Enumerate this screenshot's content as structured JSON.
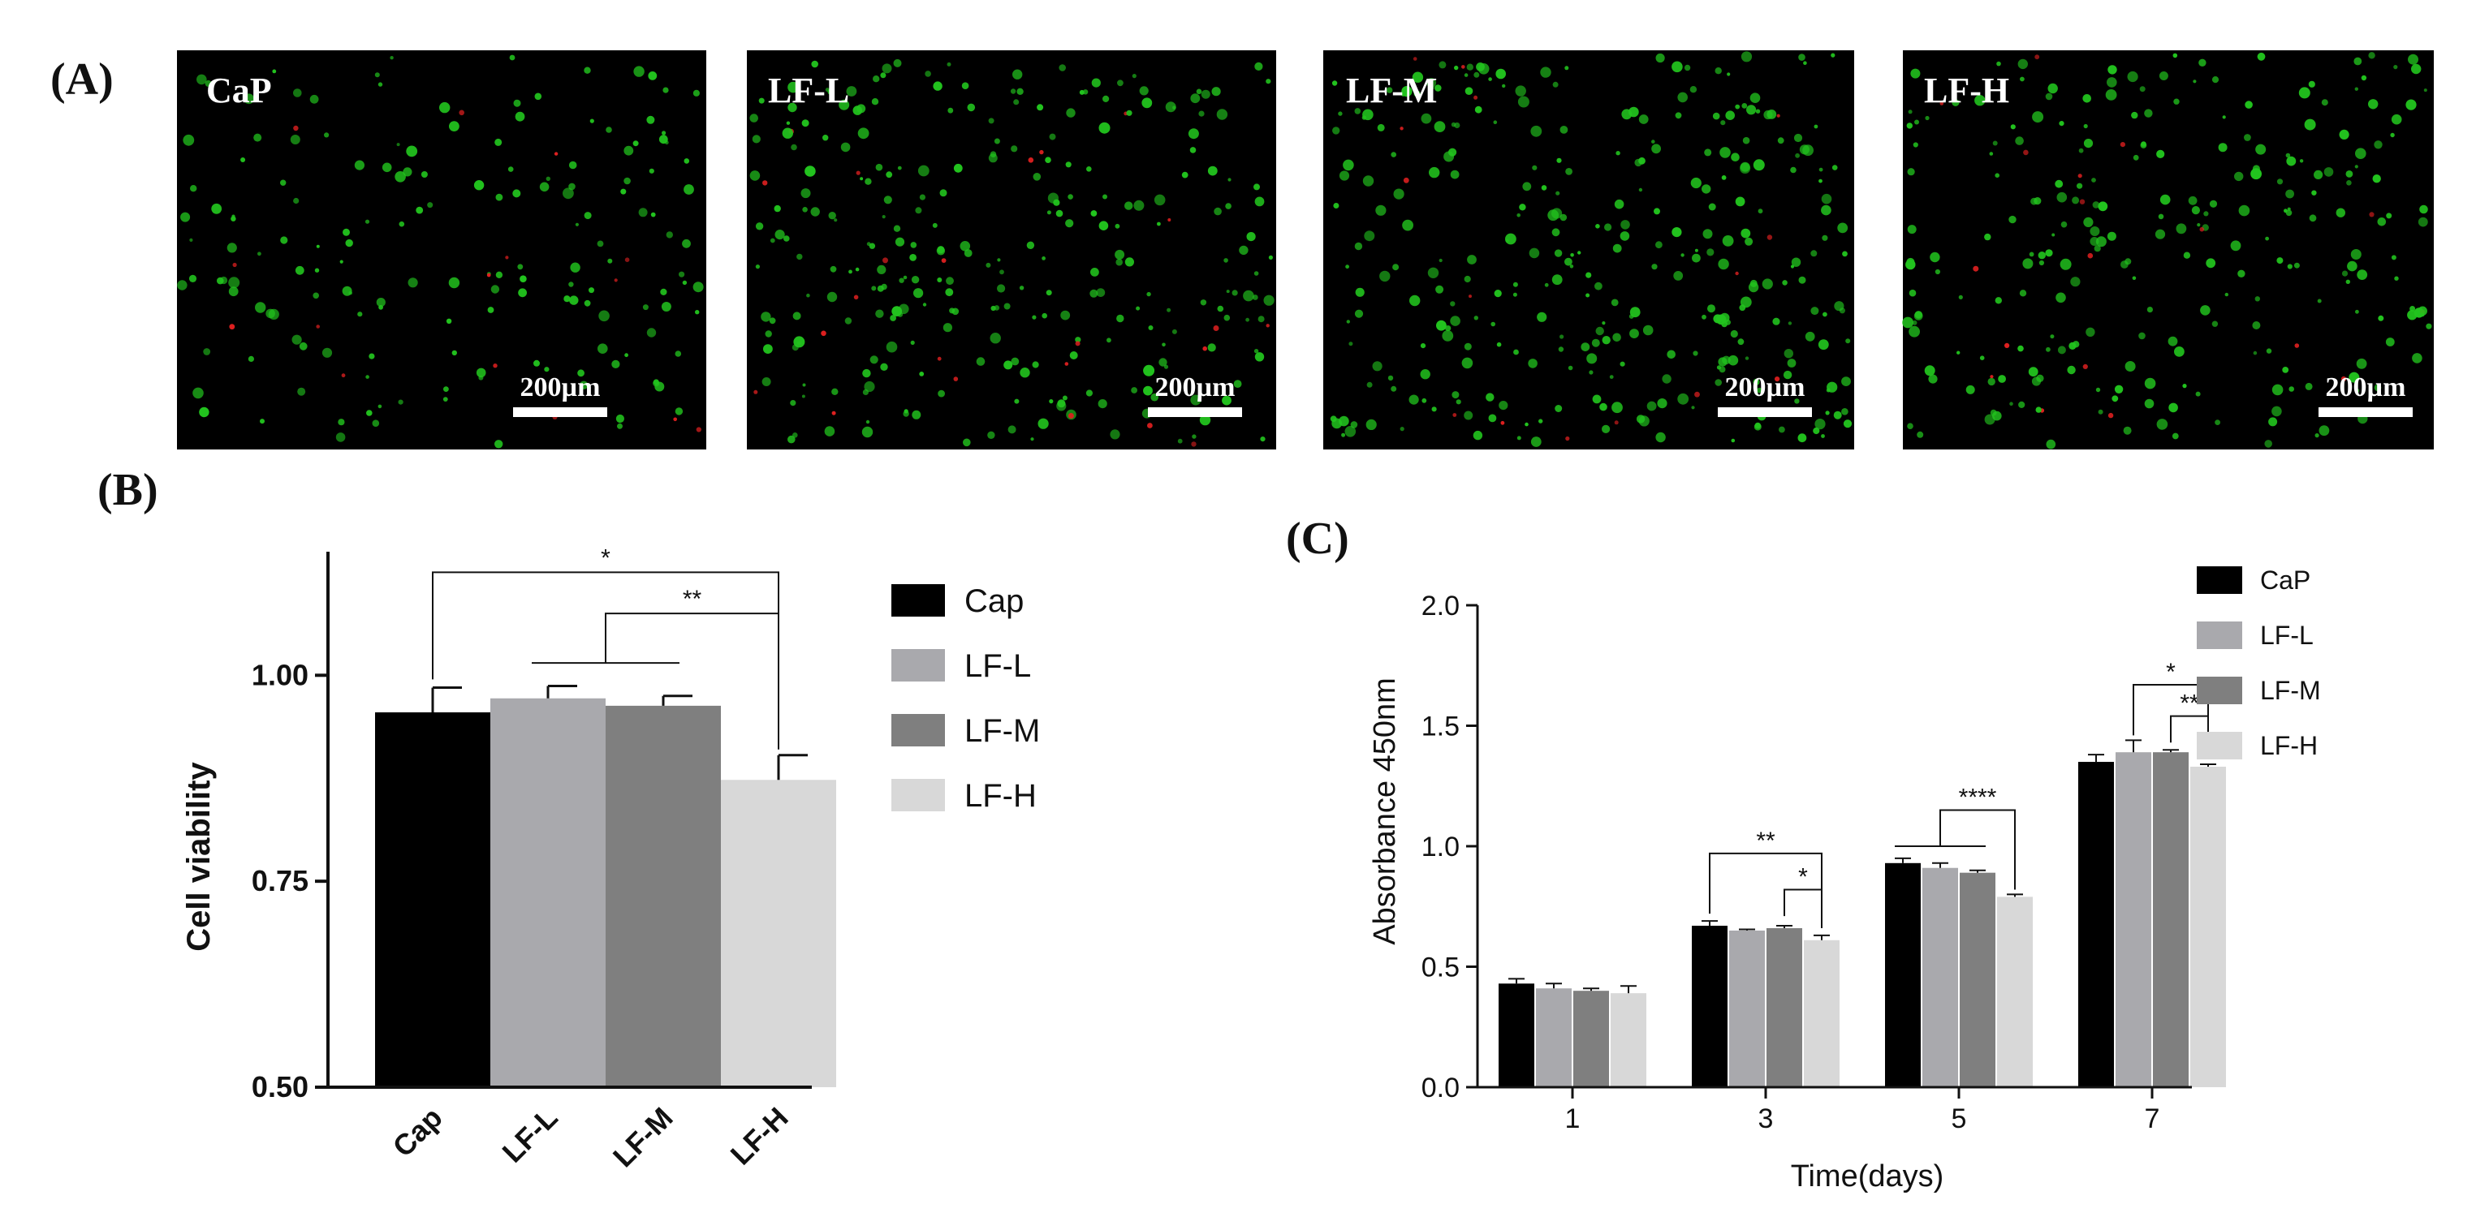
{
  "figure": {
    "panel_labels": [
      "(A)",
      "(B)",
      "(C)"
    ],
    "micrographs": [
      {
        "label": "CaP",
        "scale_bar": "200µm",
        "density": 0.55,
        "red_ratio": 0.06,
        "seed": 11
      },
      {
        "label": "LF-L",
        "scale_bar": "200µm",
        "density": 0.9,
        "red_ratio": 0.07,
        "seed": 23
      },
      {
        "label": "LF-M",
        "scale_bar": "200µm",
        "density": 1.0,
        "red_ratio": 0.05,
        "seed": 37
      },
      {
        "label": "LF-H",
        "scale_bar": "200µm",
        "density": 0.8,
        "red_ratio": 0.07,
        "seed": 53
      }
    ],
    "colors": {
      "micro_bg": "#000000",
      "live_cell": "#22c41e",
      "dead_cell": "#e02020",
      "bar_cap": "#000000",
      "bar_lfl": "#a9a9ad",
      "bar_lfm": "#7f7f7f",
      "bar_lfh": "#d8d8d8"
    }
  },
  "chart_data": [
    {
      "type": "bar",
      "panel": "(B)",
      "ylabel": "Cell viability",
      "xlabel": "",
      "categories": [
        "Cap",
        "LF-L",
        "LF-M",
        "LF-H"
      ],
      "values": [
        0.955,
        0.972,
        0.963,
        0.873
      ],
      "errors": [
        0.03,
        0.015,
        0.012,
        0.03
      ],
      "ylim": [
        0.5,
        1.15
      ],
      "yticks": [
        "0.50",
        "0.75",
        "1.00"
      ],
      "ytick_values": [
        0.5,
        0.75,
        1.0
      ],
      "legend": [
        "Cap",
        "LF-L",
        "LF-M",
        "LF-H"
      ],
      "legend_position": "right",
      "significance": [
        {
          "from": "Cap",
          "to": "LF-H",
          "label": "*"
        },
        {
          "from": "LF-L + LF-M",
          "to": "LF-H",
          "label": "**"
        }
      ]
    },
    {
      "type": "bar",
      "panel": "(C)",
      "xlabel": "Time(days)",
      "ylabel": "Absorbance 450nm",
      "categories": [
        "1",
        "3",
        "5",
        "7"
      ],
      "series": [
        {
          "name": "CaP",
          "values": [
            0.43,
            0.67,
            0.93,
            1.35
          ],
          "errors": [
            0.02,
            0.02,
            0.02,
            0.03
          ]
        },
        {
          "name": "LF-L",
          "values": [
            0.41,
            0.65,
            0.91,
            1.39
          ],
          "errors": [
            0.02,
            0.005,
            0.02,
            0.05
          ]
        },
        {
          "name": "LF-M",
          "values": [
            0.4,
            0.66,
            0.89,
            1.39
          ],
          "errors": [
            0.01,
            0.01,
            0.01,
            0.01
          ]
        },
        {
          "name": "LF-H",
          "values": [
            0.39,
            0.61,
            0.79,
            1.33
          ],
          "errors": [
            0.03,
            0.02,
            0.01,
            0.01
          ]
        }
      ],
      "ylim": [
        0,
        2.0
      ],
      "yticks": [
        "0.0",
        "0.5",
        "1.0",
        "1.5",
        "2.0"
      ],
      "ytick_values": [
        0,
        0.5,
        1.0,
        1.5,
        2.0
      ],
      "legend_position": "top-right",
      "significance": [
        {
          "day": "3",
          "from": "CaP",
          "to": "LF-H",
          "label": "**"
        },
        {
          "day": "3",
          "from": "LF-M",
          "to": "LF-H",
          "label": "*"
        },
        {
          "day": "5",
          "from": "CaP + LF-L + LF-M",
          "to": "LF-H",
          "label": "****"
        },
        {
          "day": "7",
          "from": "LF-L",
          "to": "LF-H",
          "label": "*"
        },
        {
          "day": "7",
          "from": "LF-M",
          "to": "LF-H",
          "label": "**"
        }
      ]
    }
  ]
}
